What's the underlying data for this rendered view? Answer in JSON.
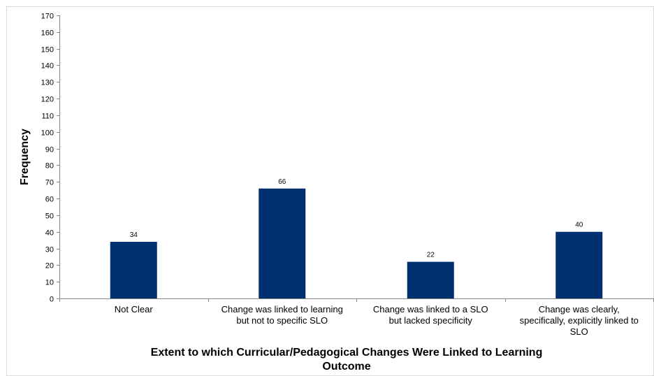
{
  "chart_data": {
    "type": "bar",
    "categories": [
      [
        "Not Clear"
      ],
      [
        "Change was linked to learning",
        "but not to specific SLO"
      ],
      [
        "Change was linked to a SLO",
        "but lacked specificity"
      ],
      [
        "Change was clearly,",
        "specifically, explicitly linked to",
        "SLO"
      ]
    ],
    "values": [
      34,
      66,
      22,
      40
    ],
    "data_labels": [
      "34",
      "66",
      "22",
      "40"
    ],
    "xlabel": [
      "Extent to which Curricular/Pedagogical Changes Were Linked to Learning",
      "Outcome"
    ],
    "ylabel": "Frequency",
    "ylim": [
      0,
      170
    ],
    "ytick_step": 10,
    "grid": false,
    "bar_color": "#003070"
  }
}
